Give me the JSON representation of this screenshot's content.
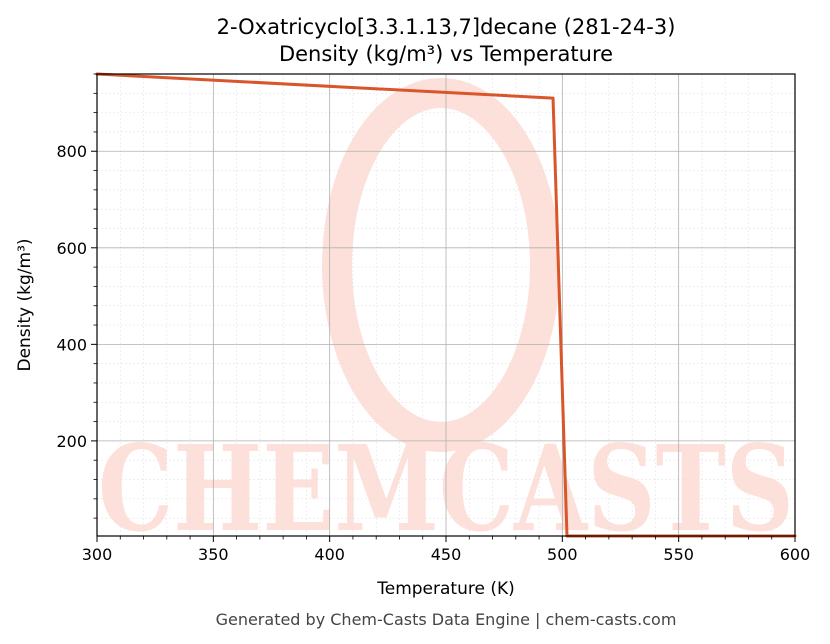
{
  "chart_data": {
    "type": "line",
    "title": "2-Oxatricyclo[3.3.1.13,7]decane (281-24-3)",
    "subtitle": "Density (kg/m³) vs Temperature",
    "xlabel": "Temperature (K)",
    "ylabel": "Density (kg/m³)",
    "xlim": [
      300,
      600
    ],
    "ylim": [
      3,
      960
    ],
    "x_ticks": [
      300,
      350,
      400,
      450,
      500,
      550,
      600
    ],
    "y_ticks": [
      200,
      400,
      600,
      800
    ],
    "grid": true,
    "minor_grid": true,
    "legend": false,
    "series": [
      {
        "color": "#d9562b",
        "x": [
          300,
          496,
          502,
          600
        ],
        "y": [
          960,
          910,
          3,
          3
        ]
      }
    ]
  },
  "watermark": {
    "text": "CHEMCASTS",
    "color": "#fde0d9"
  },
  "footer": "Generated by Chem-Casts Data Engine | chem-casts.com"
}
